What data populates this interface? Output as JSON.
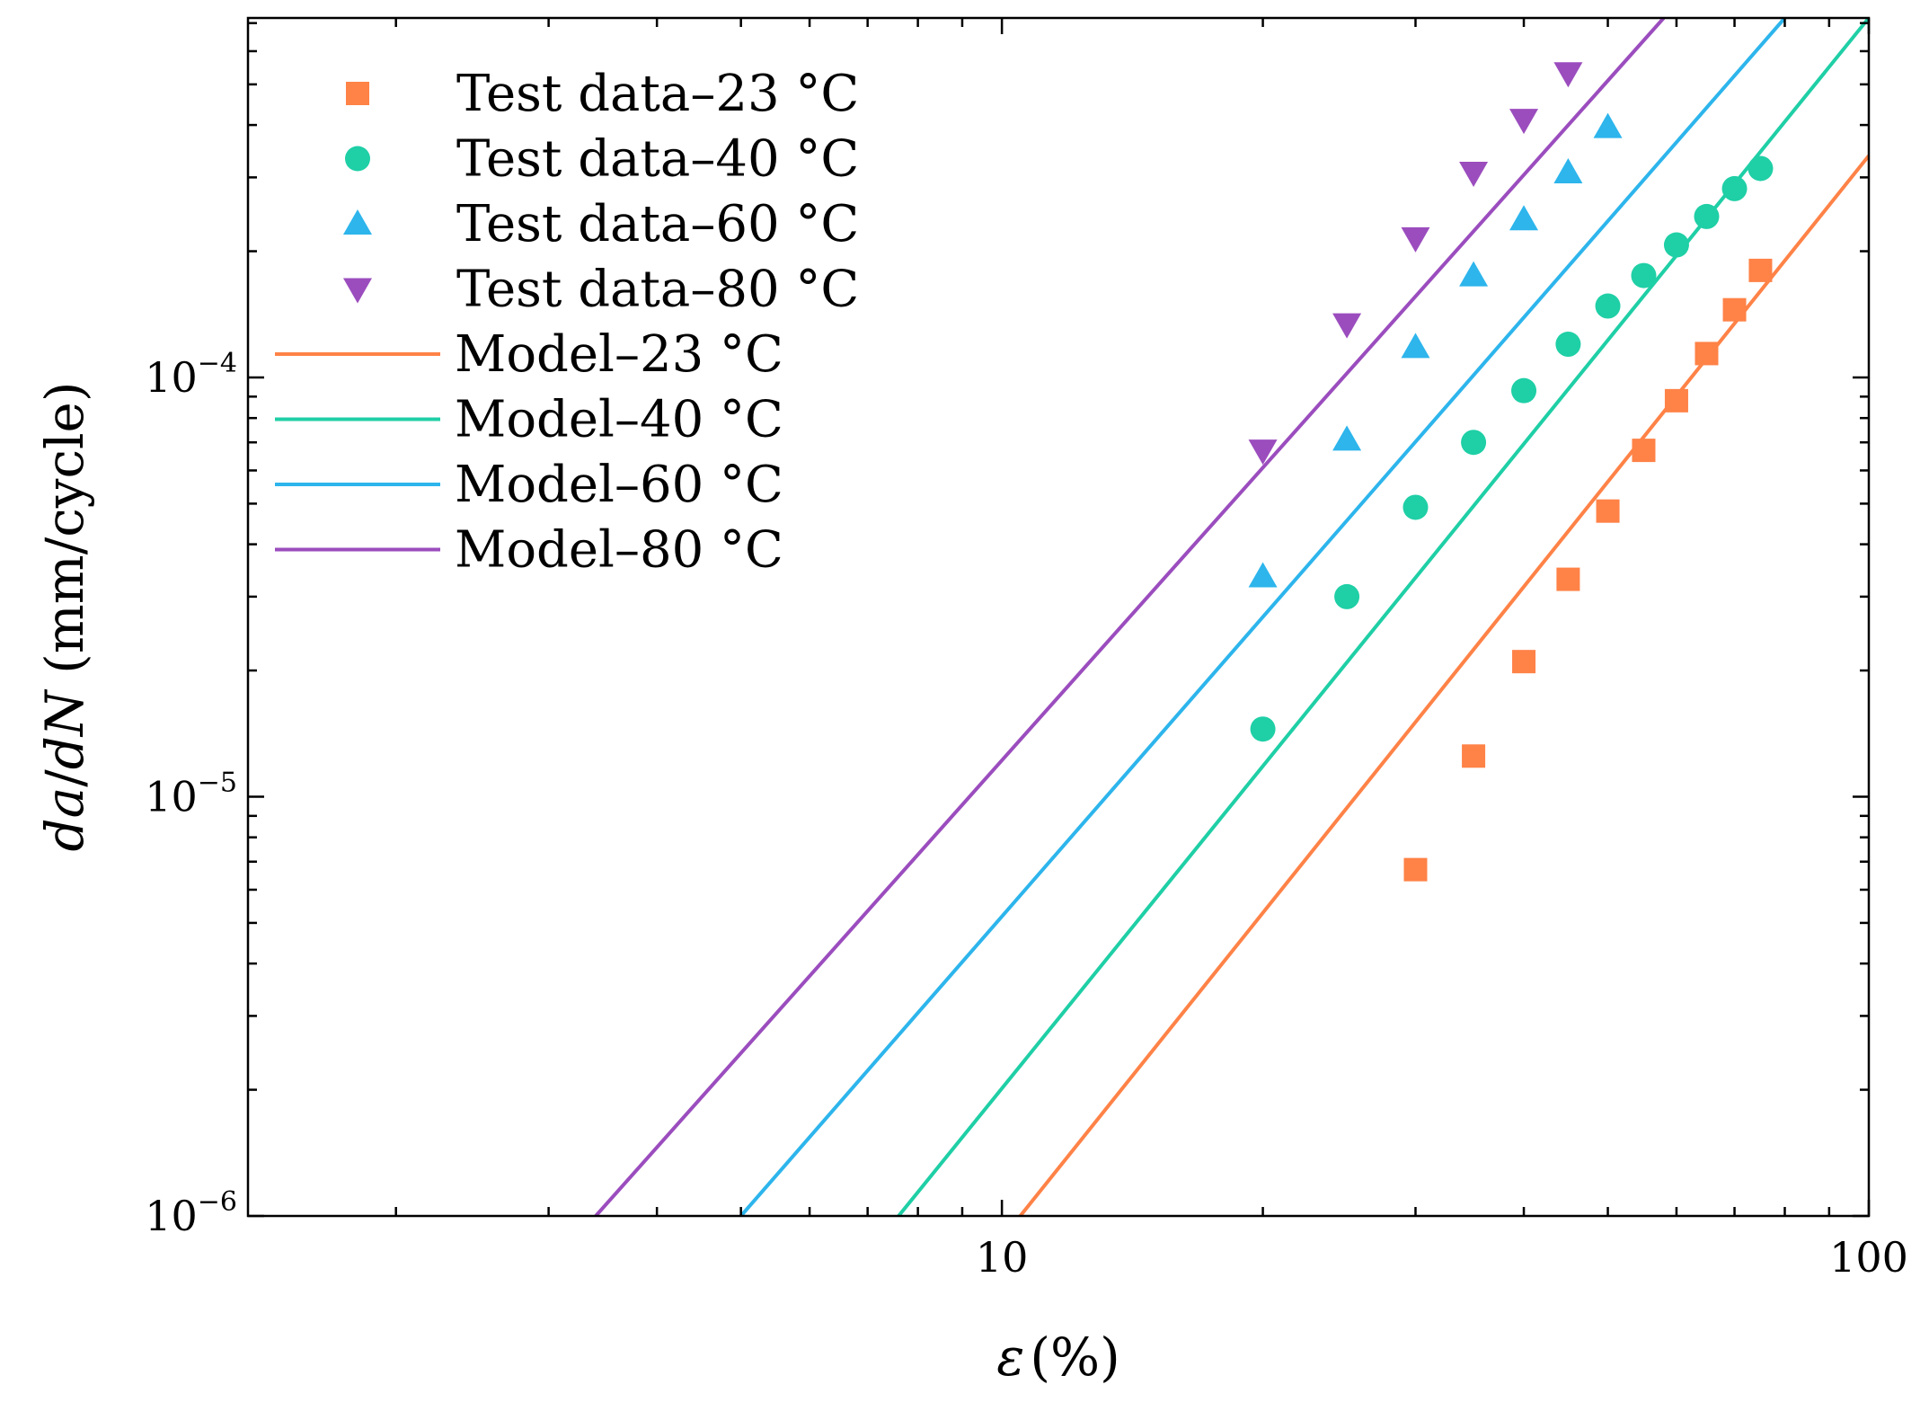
{
  "chart_data": {
    "type": "scatter",
    "title": "",
    "xscale": "log",
    "yscale": "log",
    "xlim": [
      1.35,
      100
    ],
    "ylim": [
      1e-06,
      0.00072
    ],
    "xlabel": {
      "symbol": "ε",
      "unit": "(%)"
    },
    "ylabel": {
      "var1": "da",
      "slash": "/",
      "var2": "dN",
      "unit": " (mm/cycle)"
    },
    "x_ticks": [
      {
        "value": 10,
        "label": "10"
      },
      {
        "value": 100,
        "label": "100"
      }
    ],
    "y_ticks": [
      {
        "value": 1e-06,
        "base": "10",
        "exp": "−6"
      },
      {
        "value": 1e-05,
        "base": "10",
        "exp": "−5"
      },
      {
        "value": 0.0001,
        "base": "10",
        "exp": "−4"
      }
    ],
    "legend_position": "top-left",
    "series": [
      {
        "name": "Test data–23 °C",
        "kind": "scatter",
        "marker": "square",
        "color": "#FF8247",
        "x": [
          30,
          35,
          40,
          45,
          50,
          55,
          60,
          65,
          70,
          75
        ],
        "y": [
          6.7e-06,
          1.25e-05,
          2.1e-05,
          3.3e-05,
          4.8e-05,
          6.7e-05,
          8.8e-05,
          0.000114,
          0.000145,
          0.00018
        ]
      },
      {
        "name": "Test data–40 °C",
        "kind": "scatter",
        "marker": "circle",
        "color": "#1FCFA6",
        "x": [
          20,
          25,
          30,
          35,
          40,
          45,
          50,
          55,
          60,
          65,
          70,
          75
        ],
        "y": [
          1.45e-05,
          3e-05,
          4.9e-05,
          7e-05,
          9.3e-05,
          0.00012,
          0.000148,
          0.000175,
          0.000207,
          0.000242,
          0.000282,
          0.000315
        ]
      },
      {
        "name": "Test data–60 °C",
        "kind": "scatter",
        "marker": "triangle-up",
        "color": "#2DB5EC",
        "x": [
          20,
          25,
          30,
          35,
          40,
          45,
          50
        ],
        "y": [
          3.35e-05,
          7.1e-05,
          0.000118,
          0.000175,
          0.000238,
          0.000308,
          0.000395
        ]
      },
      {
        "name": "Test data–80 °C",
        "kind": "scatter",
        "marker": "triangle-down",
        "color": "#9B4DBE",
        "x": [
          20,
          25,
          30,
          35,
          40,
          45
        ],
        "y": [
          6.7e-05,
          0.000134,
          0.000215,
          0.000308,
          0.000412,
          0.000532
        ]
      },
      {
        "name": "Model–23 °C",
        "kind": "line",
        "color": "#FF8247",
        "x": [
          10.5,
          100
        ],
        "y": [
          1e-06,
          0.000338
        ]
      },
      {
        "name": "Model–40 °C",
        "kind": "line",
        "color": "#1FCFA6",
        "x": [
          7.6,
          100
        ],
        "y": [
          1e-06,
          0.00072
        ]
      },
      {
        "name": "Model–60 °C",
        "kind": "line",
        "color": "#2DB5EC",
        "x": [
          5.0,
          80
        ],
        "y": [
          1e-06,
          0.00072
        ]
      },
      {
        "name": "Model–80 °C",
        "kind": "line",
        "color": "#9B4DBE",
        "x": [
          3.4,
          58
        ],
        "y": [
          1e-06,
          0.00072
        ]
      }
    ]
  }
}
